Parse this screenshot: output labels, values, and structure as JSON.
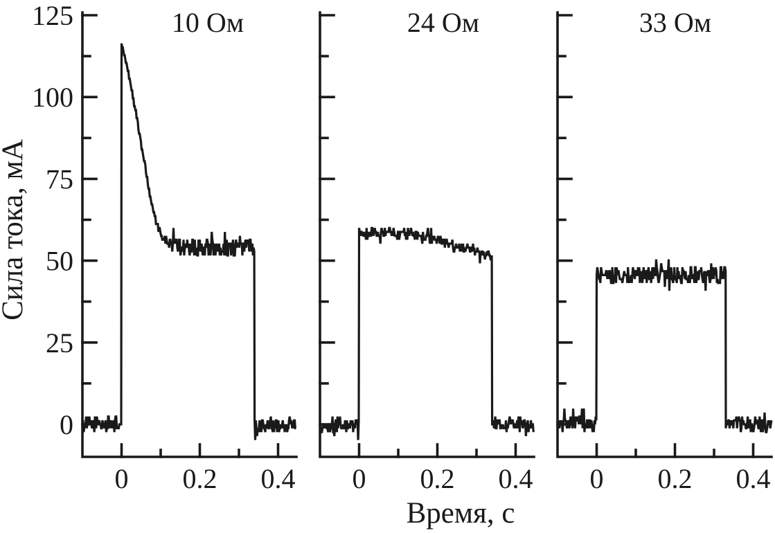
{
  "chart_data": {
    "type": "line",
    "title": "",
    "xlabel": "Время, с",
    "ylabel": "Сила тока, мА",
    "xlim": [
      -0.1,
      0.45
    ],
    "ylim": [
      -10,
      125
    ],
    "grid": false,
    "legend_position": "none",
    "line_color": "#1a1a1a",
    "background_color": "#ffffff",
    "x_ticks_major": [
      0,
      0.2,
      0.4
    ],
    "x_tick_labels": [
      "0",
      "0.2",
      "0.4"
    ],
    "x_ticks_minor": [
      0.1,
      0.3
    ],
    "y_ticks_major": [
      0,
      25,
      50,
      75,
      100,
      125
    ],
    "y_tick_labels": [
      "0",
      "25",
      "50",
      "75",
      "100",
      "125"
    ],
    "y_ticks_minor": [
      12.5,
      37.5,
      62.5,
      87.5,
      112.5
    ],
    "panels": [
      {
        "title": "10 Ом",
        "resistance_ohm": 10,
        "baseline_mA": 0,
        "pulse": {
          "t_on_s": 0,
          "t_off_s": 0.34,
          "peak_mA": 116,
          "steady_mA": 54,
          "envelope": [
            [
              0,
              116
            ],
            [
              0.005,
              114.5
            ],
            [
              0.01,
              111.5
            ],
            [
              0.02,
              106
            ],
            [
              0.03,
              99.5
            ],
            [
              0.04,
              93
            ],
            [
              0.05,
              86
            ],
            [
              0.06,
              79
            ],
            [
              0.07,
              71.5
            ],
            [
              0.08,
              66
            ],
            [
              0.09,
              61
            ],
            [
              0.1,
              58
            ],
            [
              0.11,
              56.5
            ],
            [
              0.12,
              55.5
            ],
            [
              0.14,
              54.5
            ],
            [
              0.16,
              54
            ],
            [
              0.34,
              54
            ]
          ],
          "noise_amp_mA": [
            [
              0,
              0.5
            ],
            [
              0.09,
              0.8
            ],
            [
              0.13,
              2.5
            ],
            [
              0.34,
              2.5
            ]
          ]
        }
      },
      {
        "title": "24 Ом",
        "resistance_ohm": 24,
        "baseline_mA": 0,
        "pulse": {
          "t_on_s": 0,
          "t_off_s": 0.34,
          "peak_mA": 58.5,
          "steady_mA": 51,
          "envelope": [
            [
              0,
              58.5
            ],
            [
              0.14,
              58
            ],
            [
              0.18,
              57
            ],
            [
              0.22,
              55.5
            ],
            [
              0.26,
              54
            ],
            [
              0.3,
              52.5
            ],
            [
              0.34,
              51
            ]
          ],
          "noise_amp_mA": [
            [
              0,
              1.5
            ],
            [
              0.34,
              1.5
            ]
          ]
        }
      },
      {
        "title": "33 Ом",
        "resistance_ohm": 33,
        "baseline_mA": 0,
        "pulse": {
          "t_on_s": 0,
          "t_off_s": 0.33,
          "peak_mA": 45.5,
          "steady_mA": 45.5,
          "envelope": [
            [
              0,
              45.5
            ],
            [
              0.33,
              45.5
            ]
          ],
          "noise_amp_mA": [
            [
              0,
              2.6
            ],
            [
              0.33,
              2.6
            ]
          ]
        }
      }
    ],
    "noise": {
      "baseline_amp_mA": 2.2,
      "spike_probability": 0.07,
      "spike_gain": 2.2,
      "sample_dt_s": 0.0016,
      "quantize_step_mA": 1.2
    }
  }
}
